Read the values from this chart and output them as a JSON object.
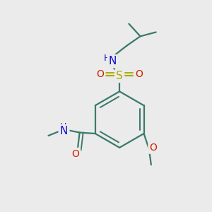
{
  "background_color": "#ebebeb",
  "fig_size": [
    3.0,
    3.0
  ],
  "dpi": 100,
  "bond_color": "#3a7a6a",
  "bond_width": 1.6,
  "atom_colors": {
    "N": "#1010cc",
    "O": "#cc2200",
    "S": "#aaaa00",
    "C": "#3a7a6a"
  },
  "font_size": 10
}
